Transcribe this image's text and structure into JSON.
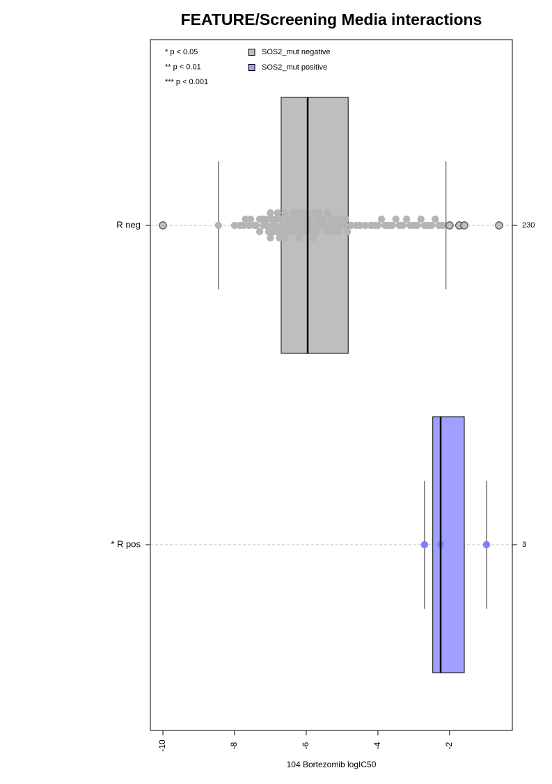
{
  "chart_data": {
    "type": "box",
    "orientation": "horizontal",
    "title": "FEATURE/Screening Media interactions",
    "xlabel": "104 Bortezomib logIC50",
    "xlim": [
      -10.35,
      -0.25
    ],
    "xticks": [
      -10,
      -8,
      -6,
      -4,
      -2
    ],
    "significance_labels": [
      "* p < 0.05",
      "** p < 0.01",
      "*** p < 0.001"
    ],
    "legend": "top-left",
    "series": [
      {
        "name": "SOS2_mut negative",
        "category": "R neg",
        "color": "#bebebe",
        "point_color": "#b5b5b5",
        "count": 230,
        "whisker_low": -8.45,
        "q1": -6.7,
        "median": -5.96,
        "q3": -4.83,
        "whisker_high": -2.1,
        "outliers": [
          -10.0,
          -2.0,
          -1.73,
          -1.59,
          -0.62
        ],
        "points": [
          -8.45,
          -8.0,
          -7.85,
          -7.75,
          -7.7,
          -7.6,
          -7.55,
          -7.45,
          -7.4,
          -7.3,
          -7.3,
          -7.2,
          -7.2,
          -7.1,
          -7.1,
          -7.05,
          -7.0,
          -7.0,
          -6.95,
          -6.95,
          -6.9,
          -6.85,
          -6.85,
          -6.8,
          -6.8,
          -6.75,
          -6.7,
          -6.7,
          -6.65,
          -6.6,
          -6.6,
          -6.55,
          -6.5,
          -6.5,
          -6.45,
          -6.4,
          -6.4,
          -6.35,
          -6.3,
          -6.3,
          -6.25,
          -6.2,
          -6.2,
          -6.15,
          -6.1,
          -6.1,
          -6.05,
          -6.0,
          -6.0,
          -5.95,
          -5.9,
          -5.9,
          -5.85,
          -5.8,
          -5.8,
          -5.75,
          -5.7,
          -5.7,
          -5.65,
          -5.6,
          -5.55,
          -5.5,
          -5.5,
          -5.45,
          -5.4,
          -5.35,
          -5.3,
          -5.25,
          -5.2,
          -5.15,
          -5.1,
          -5.05,
          -5.0,
          -4.95,
          -4.9,
          -4.85,
          -4.75,
          -4.6,
          -4.5,
          -4.35,
          -4.2,
          -4.1,
          -4.0,
          -3.9,
          -3.8,
          -3.7,
          -3.6,
          -3.5,
          -3.4,
          -3.3,
          -3.2,
          -3.1,
          -3.0,
          -2.9,
          -2.8,
          -2.7,
          -2.6,
          -2.5,
          -2.4,
          -2.3,
          -2.2
        ]
      },
      {
        "name": "SOS2_mut positive",
        "category": "* R pos",
        "color": "#a0a0ff",
        "point_color": "#7f7fff",
        "count": 3,
        "whisker_low": -2.7,
        "q1": -2.47,
        "median": -2.25,
        "q3": -1.59,
        "whisker_high": -0.97,
        "outliers": [],
        "points": [
          -2.7,
          -2.25,
          -0.97
        ]
      }
    ]
  }
}
